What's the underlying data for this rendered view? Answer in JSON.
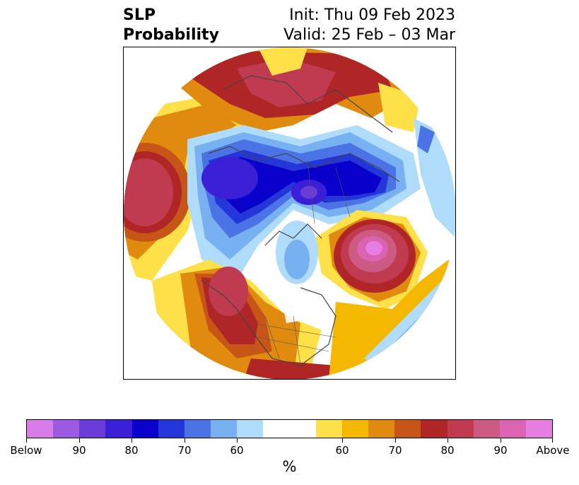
{
  "title": {
    "left_line1": "SLP",
    "left_line2": "Probability",
    "right_line1": "Init: Thu 09 Feb 2023",
    "right_line2": "Valid: 25 Feb – 03 Mar"
  },
  "colorbar": {
    "colors": [
      "#d97be8",
      "#9b5ae0",
      "#6b3cd8",
      "#3a1fd6",
      "#0a00cc",
      "#2436d8",
      "#4c73e6",
      "#78b1f2",
      "#b0dcfb",
      "#ffffff",
      "#ffffff",
      "#fee049",
      "#f5b800",
      "#e08a10",
      "#c85518",
      "#b02626",
      "#c03a50",
      "#cd5a83",
      "#db63b2",
      "#e57ee0"
    ],
    "ticks": [
      "Below",
      "90",
      "80",
      "70",
      "60",
      "60",
      "70",
      "80",
      "90",
      "Above"
    ],
    "units": "%"
  }
}
